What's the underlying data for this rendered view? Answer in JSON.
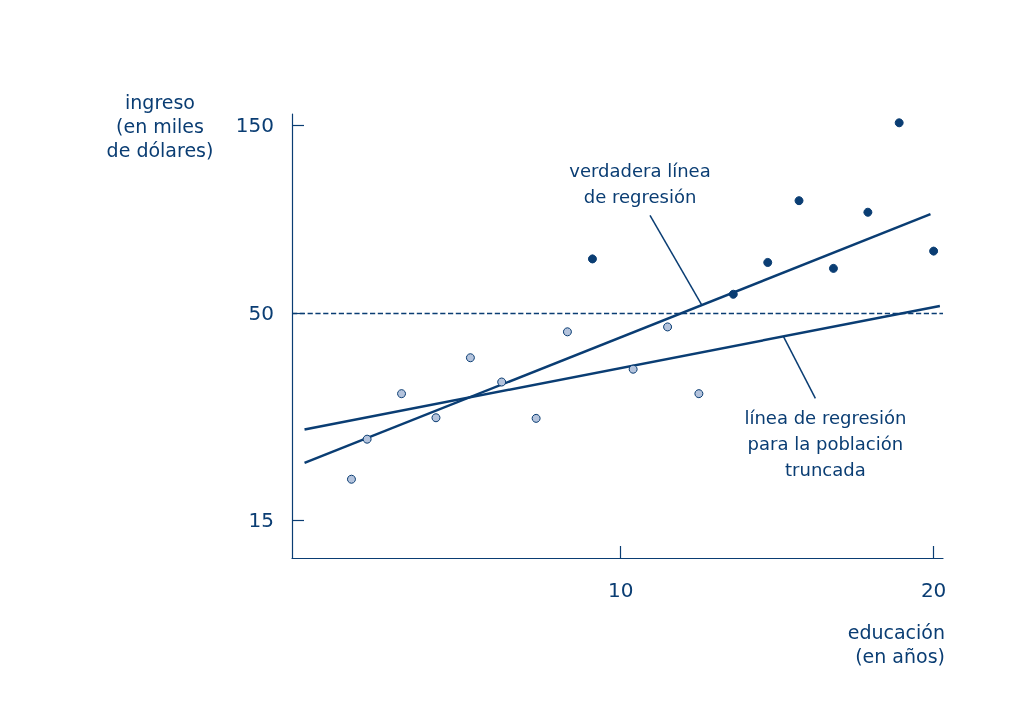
{
  "chart_data": {
    "type": "scatter",
    "xlabel": "educación\n(en años)",
    "ylabel": "ingreso\n(en miles\nde dólares)",
    "xlim": [
      -0.5,
      20.3
    ],
    "xticks": [
      10,
      20
    ],
    "ylim": [
      12,
      160
    ],
    "yticks": [
      15,
      50,
      150
    ],
    "log": "y",
    "marker": "circle",
    "series": [
      {
        "color": "#b4c3dc",
        "x": [
          1.4,
          1.9,
          3.0,
          4.1,
          5.2,
          6.2,
          7.3,
          8.3,
          10.4,
          11.5,
          12.5
        ],
        "values": [
          19.0,
          24.0,
          31.3,
          27.2,
          38.6,
          33.5,
          27.1,
          44.9,
          36.1,
          46.2,
          31.3
        ]
      },
      {
        "color": "#0a3d73",
        "x": [
          9.1,
          13.6,
          14.7,
          15.7,
          16.8,
          17.9,
          18.9,
          20.0
        ],
        "values": [
          68.7,
          55.9,
          67.3,
          96.5,
          65.0,
          90.2,
          152,
          71.9
        ]
      },
      {
        "type": "line",
        "color": "#0a3d73",
        "marker": "none",
        "x": [
          -0.1,
          19.9
        ],
        "values": [
          20.9,
          89.2
        ]
      },
      {
        "type": "line",
        "color": "#0a3d73",
        "marker": "none",
        "x": [
          -0.1,
          20.2
        ],
        "values": [
          25.4,
          52.2
        ]
      }
    ],
    "ref_lines": [
      {
        "axis": "y",
        "value": 50,
        "color": "#0a3d73",
        "line_style": "dashed"
      }
    ],
    "annotations": [
      {
        "text": "verdadera línea\nde regresión",
        "x": 12.6,
        "y": 52.4
      },
      {
        "text": "línea de regresión\npara la población\ntruncada",
        "x": 15.2,
        "y": 43.7
      }
    ]
  }
}
